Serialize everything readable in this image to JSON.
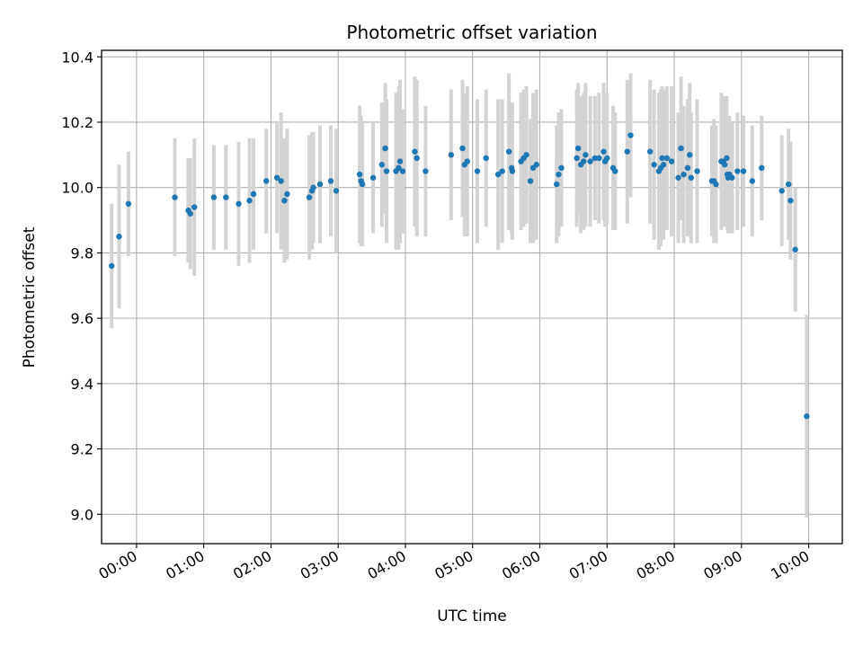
{
  "chart_data": {
    "type": "scatter",
    "title": "Photometric offset variation",
    "xlabel": "UTC time",
    "ylabel": "Photometric offset",
    "x_unit": "hours",
    "xlim": [
      -0.52,
      10.5
    ],
    "ylim": [
      8.91,
      10.42
    ],
    "x_ticks": [
      0,
      1,
      2,
      3,
      4,
      5,
      6,
      7,
      8,
      9,
      10
    ],
    "x_tick_labels": [
      "00:00",
      "01:00",
      "02:00",
      "03:00",
      "04:00",
      "05:00",
      "06:00",
      "07:00",
      "08:00",
      "09:00",
      "10:00"
    ],
    "y_ticks": [
      9.0,
      9.2,
      9.4,
      9.6,
      9.8,
      10.0,
      10.2,
      10.4
    ],
    "y_tick_labels": [
      "9.0",
      "9.2",
      "9.4",
      "9.6",
      "9.8",
      "10.0",
      "10.2",
      "10.4"
    ],
    "grid": true,
    "colors": {
      "points": "#1f77b4",
      "errorbars": "#d3d3d3",
      "grid": "#b0b0b0"
    },
    "series": [
      {
        "marker": "dot",
        "x": [
          -0.37,
          -0.26,
          -0.12,
          0.57,
          0.77,
          0.8,
          0.86,
          1.15,
          1.33,
          1.52,
          1.68,
          1.74,
          1.93,
          2.09,
          2.15,
          2.2,
          2.24,
          2.57,
          2.61,
          2.63,
          2.73,
          2.89,
          2.97,
          3.32,
          3.34,
          3.36,
          3.52,
          3.65,
          3.7,
          3.72,
          3.86,
          3.9,
          3.92,
          3.96,
          4.14,
          4.17,
          4.3,
          4.68,
          4.85,
          4.88,
          4.92,
          5.07,
          5.2,
          5.38,
          5.44,
          5.54,
          5.58,
          5.59,
          5.72,
          5.76,
          5.8,
          5.86,
          5.9,
          5.95,
          6.25,
          6.28,
          6.32,
          6.55,
          6.57,
          6.61,
          6.65,
          6.68,
          6.75,
          6.82,
          6.88,
          6.95,
          6.97,
          7.0,
          7.09,
          7.12,
          7.3,
          7.35,
          7.64,
          7.7,
          7.77,
          7.8,
          7.82,
          7.84,
          7.89,
          7.96,
          8.06,
          8.1,
          8.14,
          8.2,
          8.23,
          8.25,
          8.34,
          8.56,
          8.59,
          8.62,
          8.7,
          8.73,
          8.75,
          8.78,
          8.79,
          8.8,
          8.82,
          8.86,
          8.94,
          9.03,
          9.16,
          9.3,
          9.6,
          9.7,
          9.73,
          9.8,
          9.97
        ],
        "y": [
          9.76,
          9.85,
          9.95,
          9.97,
          9.93,
          9.92,
          9.94,
          9.97,
          9.97,
          9.95,
          9.96,
          9.98,
          10.02,
          10.03,
          10.02,
          9.96,
          9.98,
          9.97,
          9.99,
          10.0,
          10.01,
          10.02,
          9.99,
          10.04,
          10.02,
          10.01,
          10.03,
          10.07,
          10.12,
          10.05,
          10.05,
          10.06,
          10.08,
          10.05,
          10.11,
          10.09,
          10.05,
          10.1,
          10.12,
          10.07,
          10.08,
          10.05,
          10.09,
          10.04,
          10.05,
          10.11,
          10.06,
          10.05,
          10.08,
          10.09,
          10.1,
          10.02,
          10.06,
          10.07,
          10.01,
          10.04,
          10.06,
          10.09,
          10.12,
          10.07,
          10.08,
          10.1,
          10.08,
          10.09,
          10.09,
          10.11,
          10.08,
          10.09,
          10.06,
          10.05,
          10.11,
          10.16,
          10.11,
          10.07,
          10.05,
          10.06,
          10.09,
          10.07,
          10.09,
          10.08,
          10.03,
          10.12,
          10.04,
          10.06,
          10.1,
          10.03,
          10.05,
          10.02,
          10.02,
          10.01,
          10.08,
          10.08,
          10.07,
          10.09,
          10.04,
          10.03,
          10.04,
          10.03,
          10.05,
          10.05,
          10.02,
          10.06,
          9.99,
          10.01,
          9.96,
          9.81,
          9.3
        ],
        "yerr": [
          0.19,
          0.22,
          0.16,
          0.18,
          0.16,
          0.17,
          0.21,
          0.16,
          0.16,
          0.19,
          0.19,
          0.17,
          0.16,
          0.17,
          0.21,
          0.19,
          0.2,
          0.19,
          0.18,
          0.17,
          0.18,
          0.17,
          0.19,
          0.21,
          0.2,
          0.19,
          0.17,
          0.19,
          0.2,
          0.22,
          0.24,
          0.25,
          0.25,
          0.19,
          0.23,
          0.24,
          0.2,
          0.2,
          0.21,
          0.22,
          0.23,
          0.22,
          0.21,
          0.23,
          0.22,
          0.24,
          0.2,
          0.21,
          0.21,
          0.21,
          0.21,
          0.19,
          0.23,
          0.23,
          0.18,
          0.19,
          0.18,
          0.21,
          0.2,
          0.21,
          0.21,
          0.22,
          0.2,
          0.19,
          0.2,
          0.21,
          0.2,
          0.2,
          0.19,
          0.18,
          0.22,
          0.19,
          0.22,
          0.23,
          0.24,
          0.24,
          0.22,
          0.23,
          0.22,
          0.23,
          0.2,
          0.22,
          0.21,
          0.21,
          0.22,
          0.2,
          0.22,
          0.17,
          0.19,
          0.18,
          0.21,
          0.2,
          0.19,
          0.19,
          0.17,
          0.17,
          0.18,
          0.17,
          0.18,
          0.17,
          0.17,
          0.16,
          0.17,
          0.17,
          0.18,
          0.19,
          0.31
        ]
      }
    ]
  }
}
